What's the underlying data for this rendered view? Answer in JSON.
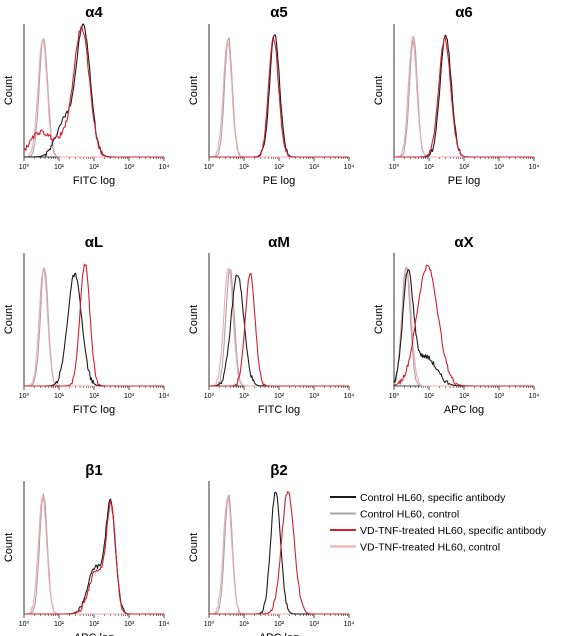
{
  "figure": {
    "legend": {
      "entries": [
        {
          "label": "Control HL60, specific antibody",
          "color": "#1a1a1a"
        },
        {
          "label": "Control HL60, control",
          "color": "#a6a6a6"
        },
        {
          "label": "VD-TNF-treated HL60, specific antibody",
          "color": "#d0202e"
        },
        {
          "label": "VD-TNF-treated HL60, control",
          "color": "#f2a7b0"
        }
      ]
    }
  },
  "chart_data": [
    {
      "type": "line",
      "title": "α4",
      "xlabel": "FITC log",
      "ylabel": "Count",
      "xscale": "log",
      "xlim": [
        1,
        10000
      ],
      "x_ticks": [
        "10⁰",
        "10¹",
        "10²",
        "10³",
        "10⁴"
      ],
      "series": [
        {
          "name": "Control HL60, specific antibody",
          "peaks": [
            {
              "x": 50,
              "h": 0.96,
              "w": 0.2
            },
            {
              "x": 15,
              "h": 0.28,
              "w": 0.25
            }
          ]
        },
        {
          "name": "Control HL60, control",
          "peaks": [
            {
              "x": 3.6,
              "h": 0.9,
              "w": 0.12
            }
          ]
        },
        {
          "name": "VD-TNF-treated HL60, specific antibody",
          "peaks": [
            {
              "x": 45,
              "h": 0.93,
              "w": 0.22
            },
            {
              "x": 2.8,
              "h": 0.18,
              "w": 0.28
            },
            {
              "x": 15,
              "h": 0.14,
              "w": 0.3
            }
          ]
        },
        {
          "name": "VD-TNF-treated HL60, control",
          "peaks": [
            {
              "x": 3.4,
              "h": 0.88,
              "w": 0.13
            }
          ]
        }
      ]
    },
    {
      "type": "line",
      "title": "α5",
      "xlabel": "PE log",
      "ylabel": "Count",
      "xscale": "log",
      "xlim": [
        1,
        10000
      ],
      "x_ticks": [
        "10⁰",
        "10¹",
        "10²",
        "10³",
        "10⁴"
      ],
      "series": [
        {
          "name": "Control HL60, specific antibody",
          "peaks": [
            {
              "x": 75,
              "h": 0.93,
              "w": 0.14
            }
          ]
        },
        {
          "name": "Control HL60, control",
          "peaks": [
            {
              "x": 3.6,
              "h": 0.9,
              "w": 0.11
            }
          ]
        },
        {
          "name": "VD-TNF-treated HL60, specific antibody",
          "peaks": [
            {
              "x": 70,
              "h": 0.9,
              "w": 0.14
            }
          ]
        },
        {
          "name": "VD-TNF-treated HL60, control",
          "peaks": [
            {
              "x": 3.4,
              "h": 0.88,
              "w": 0.12
            }
          ]
        }
      ]
    },
    {
      "type": "line",
      "title": "α6",
      "xlabel": "PE log",
      "ylabel": "Count",
      "xscale": "log",
      "xlim": [
        1,
        10000
      ],
      "x_ticks": [
        "10⁰",
        "10¹",
        "10²",
        "10³",
        "10⁴"
      ],
      "series": [
        {
          "name": "Control HL60, specific antibody",
          "peaks": [
            {
              "x": 30,
              "h": 0.92,
              "w": 0.16
            }
          ]
        },
        {
          "name": "Control HL60, control",
          "peaks": [
            {
              "x": 3.6,
              "h": 0.9,
              "w": 0.11
            }
          ]
        },
        {
          "name": "VD-TNF-treated HL60, specific antibody",
          "peaks": [
            {
              "x": 28,
              "h": 0.89,
              "w": 0.17
            }
          ]
        },
        {
          "name": "VD-TNF-treated HL60, control",
          "peaks": [
            {
              "x": 3.4,
              "h": 0.88,
              "w": 0.12
            }
          ]
        }
      ]
    },
    {
      "type": "line",
      "title": "αL",
      "xlabel": "FITC log",
      "ylabel": "Count",
      "xscale": "log",
      "xlim": [
        1,
        10000
      ],
      "x_ticks": [
        "10⁰",
        "10¹",
        "10²",
        "10³",
        "10⁴"
      ],
      "series": [
        {
          "name": "Control HL60, specific antibody",
          "peaks": [
            {
              "x": 28,
              "h": 0.84,
              "w": 0.2
            }
          ]
        },
        {
          "name": "Control HL60, control",
          "peaks": [
            {
              "x": 3.8,
              "h": 0.9,
              "w": 0.11
            }
          ]
        },
        {
          "name": "VD-TNF-treated HL60, specific antibody",
          "peaks": [
            {
              "x": 55,
              "h": 0.92,
              "w": 0.14
            }
          ]
        },
        {
          "name": "VD-TNF-treated HL60, control",
          "peaks": [
            {
              "x": 3.6,
              "h": 0.88,
              "w": 0.12
            }
          ]
        }
      ]
    },
    {
      "type": "line",
      "title": "αM",
      "xlabel": "FITC log",
      "ylabel": "Count",
      "xscale": "log",
      "xlim": [
        1,
        10000
      ],
      "x_ticks": [
        "10⁰",
        "10¹",
        "10²",
        "10³",
        "10⁴"
      ],
      "series": [
        {
          "name": "Control HL60, specific antibody",
          "peaks": [
            {
              "x": 6.5,
              "h": 0.84,
              "w": 0.18
            }
          ]
        },
        {
          "name": "Control HL60, control",
          "peaks": [
            {
              "x": 4,
              "h": 0.88,
              "w": 0.12
            }
          ]
        },
        {
          "name": "VD-TNF-treated HL60, specific antibody",
          "peaks": [
            {
              "x": 15,
              "h": 0.84,
              "w": 0.14
            }
          ]
        },
        {
          "name": "VD-TNF-treated HL60, control",
          "peaks": [
            {
              "x": 3.6,
              "h": 0.9,
              "w": 0.13
            }
          ]
        }
      ]
    },
    {
      "type": "line",
      "title": "αX",
      "xlabel": "APC log",
      "ylabel": "Count",
      "xscale": "log",
      "xlim": [
        1,
        10000
      ],
      "x_ticks": [
        "10⁰",
        "10¹",
        "10²",
        "10³",
        "10⁴"
      ],
      "series": [
        {
          "name": "Control HL60, specific antibody",
          "peaks": [
            {
              "x": 2.5,
              "h": 0.82,
              "w": 0.15
            },
            {
              "x": 8,
              "h": 0.22,
              "w": 0.3
            }
          ]
        },
        {
          "name": "Control HL60, control",
          "peaks": [
            {
              "x": 2.2,
              "h": 0.9,
              "w": 0.12
            }
          ]
        },
        {
          "name": "VD-TNF-treated HL60, specific antibody",
          "peaks": [
            {
              "x": 9,
              "h": 0.9,
              "w": 0.3
            }
          ]
        },
        {
          "name": "VD-TNF-treated HL60, control",
          "peaks": [
            {
              "x": 2.3,
              "h": 0.88,
              "w": 0.13
            }
          ]
        }
      ]
    },
    {
      "type": "line",
      "title": "β1",
      "xlabel": "APC log",
      "ylabel": "Count",
      "xscale": "log",
      "xlim": [
        1,
        10000
      ],
      "x_ticks": [
        "10⁰",
        "10¹",
        "10²",
        "10³",
        "10⁴"
      ],
      "series": [
        {
          "name": "Control HL60, specific antibody",
          "peaks": [
            {
              "x": 300,
              "h": 0.8,
              "w": 0.14
            },
            {
              "x": 110,
              "h": 0.35,
              "w": 0.22
            }
          ]
        },
        {
          "name": "Control HL60, control",
          "peaks": [
            {
              "x": 3.6,
              "h": 0.9,
              "w": 0.11
            }
          ]
        },
        {
          "name": "VD-TNF-treated HL60, specific antibody",
          "peaks": [
            {
              "x": 310,
              "h": 0.78,
              "w": 0.13
            },
            {
              "x": 120,
              "h": 0.33,
              "w": 0.22
            }
          ]
        },
        {
          "name": "VD-TNF-treated HL60, control",
          "peaks": [
            {
              "x": 3.4,
              "h": 0.88,
              "w": 0.12
            }
          ]
        }
      ]
    },
    {
      "type": "line",
      "title": "β2",
      "xlabel": "APC log",
      "ylabel": "Count",
      "xscale": "log",
      "xlim": [
        1,
        10000
      ],
      "x_ticks": [
        "10⁰",
        "10¹",
        "10²",
        "10³",
        "10⁴"
      ],
      "series": [
        {
          "name": "Control HL60, specific antibody",
          "peaks": [
            {
              "x": 80,
              "h": 0.92,
              "w": 0.14
            }
          ]
        },
        {
          "name": "Control HL60, control",
          "peaks": [
            {
              "x": 3.6,
              "h": 0.9,
              "w": 0.11
            }
          ]
        },
        {
          "name": "VD-TNF-treated HL60, specific antibody",
          "peaks": [
            {
              "x": 180,
              "h": 0.92,
              "w": 0.18
            }
          ]
        },
        {
          "name": "VD-TNF-treated HL60, control",
          "peaks": [
            {
              "x": 3.4,
              "h": 0.88,
              "w": 0.12
            }
          ]
        }
      ]
    }
  ]
}
